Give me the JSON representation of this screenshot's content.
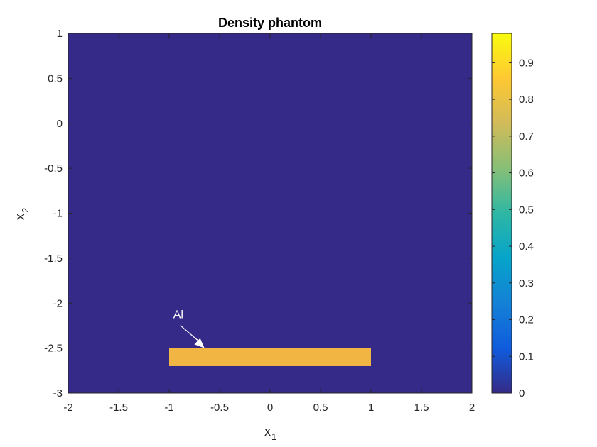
{
  "chart_data": {
    "type": "heatmap",
    "title": "Density phantom",
    "xlabel": {
      "base": "x",
      "sub": "1"
    },
    "ylabel": {
      "base": "x",
      "sub": "2"
    },
    "xlim": [
      -2,
      2
    ],
    "ylim": [
      -3,
      1
    ],
    "xticks": [
      -2,
      -1.5,
      -1,
      -0.5,
      0,
      0.5,
      1,
      1.5,
      2
    ],
    "yticks": [
      1,
      0.5,
      0,
      -0.5,
      -1,
      -1.5,
      -2,
      -2.5,
      -3
    ],
    "background_value": 0,
    "regions": [
      {
        "name": "Al",
        "x": [
          -1,
          1
        ],
        "y": [
          -2.7,
          -2.5
        ],
        "value": 0.8
      }
    ],
    "annotations": [
      {
        "text": "Al",
        "arrow_to": {
          "x": -0.65,
          "y": -2.5
        }
      }
    ],
    "colorbar": {
      "colormap": "parula",
      "clim": [
        0,
        0.98
      ],
      "ticks": [
        0,
        0.1,
        0.2,
        0.3,
        0.4,
        0.5,
        0.6,
        0.7,
        0.8,
        0.9
      ]
    },
    "colors": {
      "background": "#352a87",
      "region": "#f0b542",
      "annotation": "#ffffff"
    },
    "grid": false
  }
}
